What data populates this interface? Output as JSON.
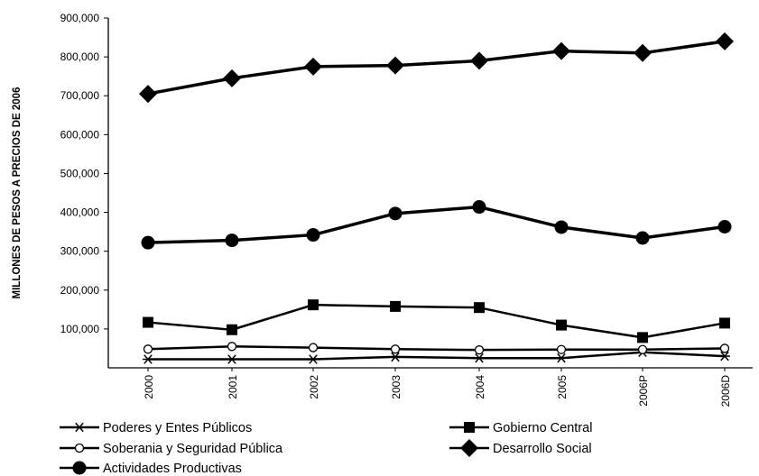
{
  "chart_data": {
    "type": "line",
    "title": "",
    "xlabel": "",
    "ylabel": "MILLONES DE PESOS A PRECIOS DE 2006",
    "categories": [
      "2000",
      "2001",
      "2002",
      "2003",
      "2004",
      "2005",
      "2006P",
      "2006D"
    ],
    "y_ticks": [
      "100,000",
      "200,000",
      "300,000",
      "400,000",
      "500,000",
      "600,000",
      "700,000",
      "800,000",
      "900,000"
    ],
    "ylim": [
      0,
      900000
    ],
    "grid": false,
    "legend_position": "bottom",
    "series": [
      {
        "name": "Poderes y Entes Públicos",
        "marker": "asterisk",
        "values": [
          22000,
          22000,
          22000,
          28000,
          25000,
          25000,
          40000,
          30000
        ]
      },
      {
        "name": "Gobierno Central",
        "marker": "square",
        "values": [
          117000,
          98000,
          162000,
          158000,
          155000,
          110000,
          78000,
          115000
        ]
      },
      {
        "name": "Soberania y Seguridad Pública",
        "marker": "open-circle",
        "values": [
          48000,
          55000,
          52000,
          48000,
          46000,
          47000,
          47000,
          50000
        ]
      },
      {
        "name": "Desarrollo Social",
        "marker": "diamond",
        "values": [
          705000,
          745000,
          775000,
          778000,
          790000,
          815000,
          810000,
          840000
        ]
      },
      {
        "name": "Actividades Productivas",
        "marker": "filled-circle",
        "values": [
          322000,
          328000,
          342000,
          397000,
          414000,
          362000,
          334000,
          363000
        ]
      }
    ]
  }
}
